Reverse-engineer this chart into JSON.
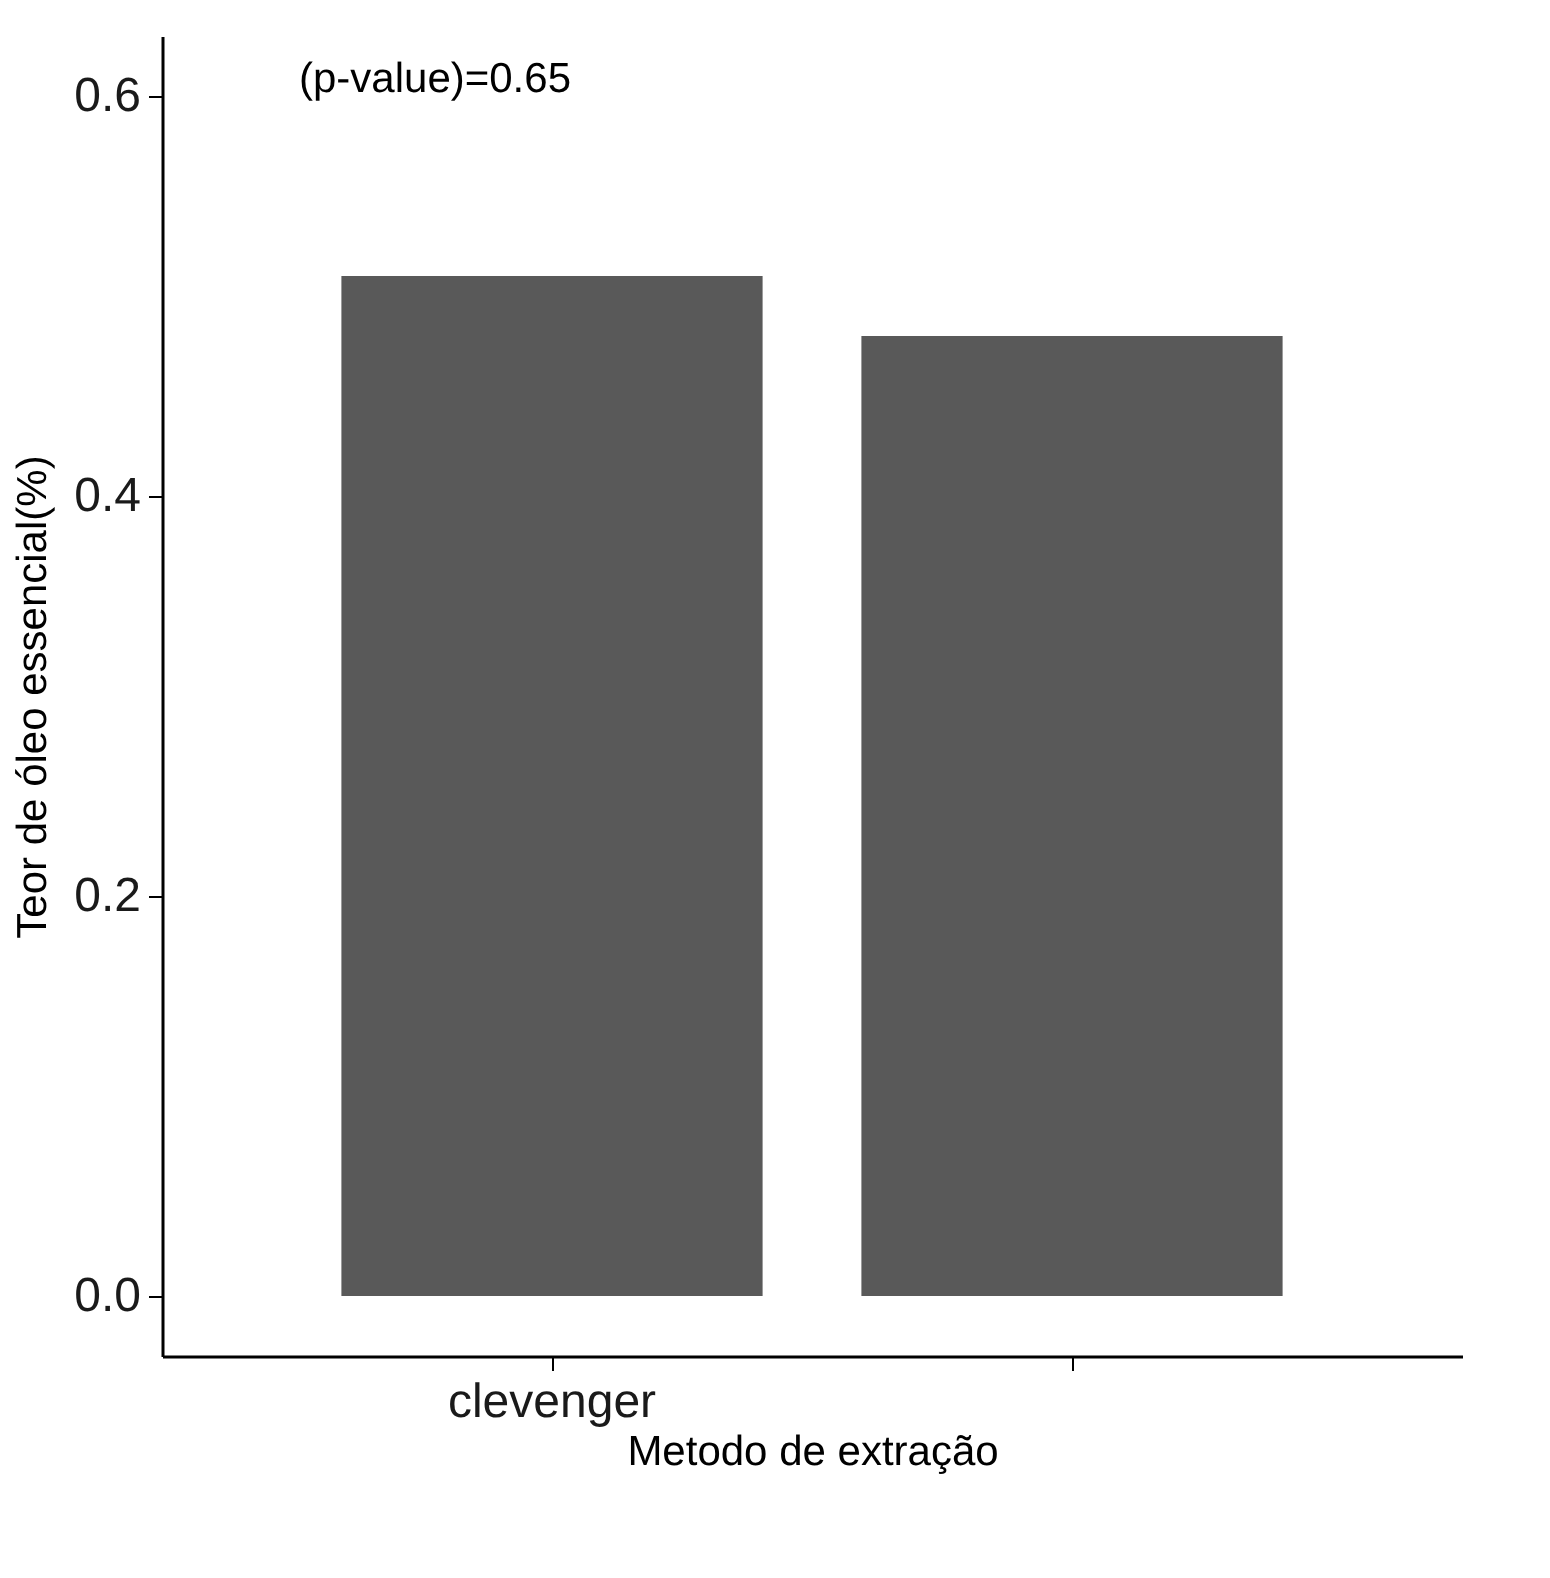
{
  "chart_data": {
    "type": "bar",
    "xlabel": "Metodo de extração",
    "ylabel": "Teor de óleo essencial(%)",
    "categories": [
      "clevenger",
      null
    ],
    "values": [
      0.51,
      0.48
    ],
    "color": "#595959",
    "ylim": [
      -0.03,
      0.63
    ],
    "yticks": [
      {
        "value": 0,
        "label": "0.0"
      },
      {
        "value": 0.2,
        "label": "0.2"
      },
      {
        "value": 0.4,
        "label": "0.4"
      },
      {
        "value": 0.6,
        "label": "0.6"
      }
    ],
    "annotations": [
      "(p-value)=0.65"
    ],
    "grid": false
  }
}
